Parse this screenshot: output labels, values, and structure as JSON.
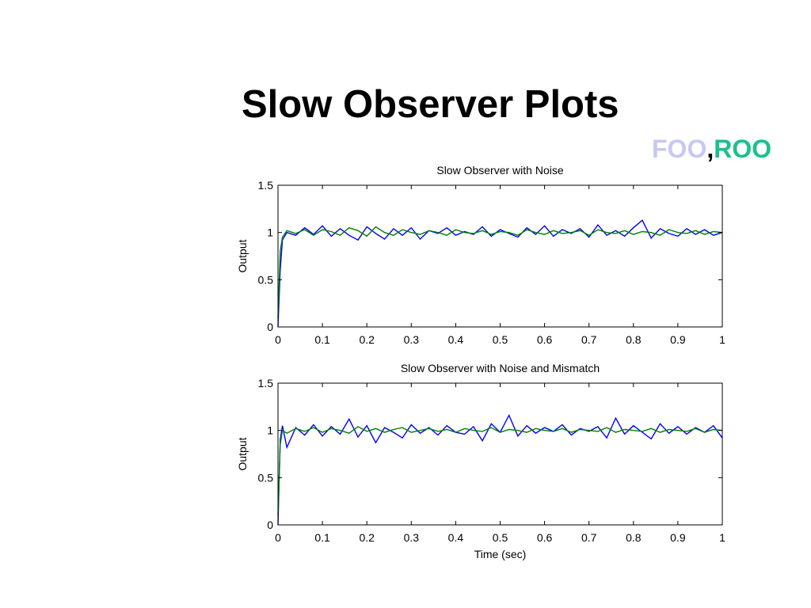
{
  "slide": {
    "title": "Slow Observer Plots",
    "tag_first": "FOO",
    "tag_sep": ",",
    "tag_second": "ROO"
  },
  "colors": {
    "series_blue": "#0000ff",
    "series_green": "#008000",
    "tag_foo": "#c8c8f4",
    "tag_roo": "#1cc08c"
  },
  "chart_data": [
    {
      "type": "line",
      "title": "Slow Observer with Noise",
      "xlabel": "",
      "ylabel": "Output",
      "xlim": [
        0,
        1
      ],
      "ylim": [
        0,
        1.5
      ],
      "xticks": [
        "0",
        "0.1",
        "0.2",
        "0.3",
        "0.4",
        "0.5",
        "0.6",
        "0.7",
        "0.8",
        "0.9",
        "1"
      ],
      "yticks": [
        "0",
        "0.5",
        "1",
        "1.5"
      ],
      "grid": false,
      "series": [
        {
          "color": "#0000ff",
          "x": [
            0,
            0.005,
            0.01,
            0.02,
            0.04,
            0.06,
            0.08,
            0.1,
            0.12,
            0.14,
            0.16,
            0.18,
            0.2,
            0.22,
            0.24,
            0.26,
            0.28,
            0.3,
            0.32,
            0.34,
            0.36,
            0.38,
            0.4,
            0.42,
            0.44,
            0.46,
            0.48,
            0.5,
            0.52,
            0.54,
            0.56,
            0.58,
            0.6,
            0.62,
            0.64,
            0.66,
            0.68,
            0.7,
            0.72,
            0.74,
            0.76,
            0.78,
            0.8,
            0.82,
            0.84,
            0.86,
            0.88,
            0.9,
            0.92,
            0.94,
            0.96,
            0.98,
            1.0
          ],
          "y": [
            0,
            0.6,
            0.92,
            1.0,
            0.97,
            1.05,
            0.98,
            1.07,
            0.96,
            1.04,
            0.97,
            0.92,
            1.06,
            0.99,
            0.93,
            1.04,
            0.97,
            1.05,
            0.93,
            1.02,
            0.99,
            1.05,
            0.97,
            1.01,
            0.98,
            1.06,
            0.96,
            1.03,
            0.99,
            0.95,
            1.05,
            0.98,
            1.07,
            0.96,
            1.03,
            0.99,
            1.04,
            0.95,
            1.08,
            0.97,
            1.02,
            0.96,
            1.05,
            1.13,
            0.94,
            1.04,
            0.99,
            0.96,
            1.04,
            0.98,
            1.03,
            0.97,
            1.0
          ]
        },
        {
          "color": "#008000",
          "x": [
            0,
            0.005,
            0.01,
            0.02,
            0.04,
            0.06,
            0.08,
            0.1,
            0.12,
            0.14,
            0.16,
            0.18,
            0.2,
            0.22,
            0.24,
            0.26,
            0.28,
            0.3,
            0.32,
            0.34,
            0.36,
            0.38,
            0.4,
            0.42,
            0.44,
            0.46,
            0.48,
            0.5,
            0.52,
            0.54,
            0.56,
            0.58,
            0.6,
            0.62,
            0.64,
            0.66,
            0.68,
            0.7,
            0.72,
            0.74,
            0.76,
            0.78,
            0.8,
            0.82,
            0.84,
            0.86,
            0.88,
            0.9,
            0.92,
            0.94,
            0.96,
            0.98,
            1.0
          ],
          "y": [
            0.1,
            0.8,
            0.95,
            1.02,
            0.99,
            1.03,
            0.97,
            1.03,
            1.01,
            0.97,
            1.05,
            1.02,
            0.96,
            1.06,
            1.0,
            0.97,
            1.03,
            1.0,
            0.98,
            1.02,
            1.0,
            0.97,
            1.03,
            1.0,
            0.99,
            1.02,
            0.98,
            1.01,
            1.0,
            0.97,
            1.03,
            1.0,
            0.98,
            1.02,
            0.99,
            1.0,
            1.02,
            0.97,
            1.03,
            1.0,
            0.99,
            1.02,
            0.98,
            1.01,
            1.0,
            0.97,
            1.03,
            1.0,
            0.99,
            1.02,
            0.98,
            1.01,
            1.0
          ]
        }
      ]
    },
    {
      "type": "line",
      "title": "Slow Observer with Noise and Mismatch",
      "xlabel": "Time (sec)",
      "ylabel": "Output",
      "xlim": [
        0,
        1
      ],
      "ylim": [
        0,
        1.5
      ],
      "xticks": [
        "0",
        "0.1",
        "0.2",
        "0.3",
        "0.4",
        "0.5",
        "0.6",
        "0.7",
        "0.8",
        "0.9",
        "1"
      ],
      "yticks": [
        "0",
        "0.5",
        "1",
        "1.5"
      ],
      "grid": false,
      "series": [
        {
          "color": "#0000ff",
          "x": [
            0,
            0.005,
            0.01,
            0.02,
            0.04,
            0.06,
            0.08,
            0.1,
            0.12,
            0.14,
            0.16,
            0.18,
            0.2,
            0.22,
            0.24,
            0.26,
            0.28,
            0.3,
            0.32,
            0.34,
            0.36,
            0.38,
            0.4,
            0.42,
            0.44,
            0.46,
            0.48,
            0.5,
            0.52,
            0.54,
            0.56,
            0.58,
            0.6,
            0.62,
            0.64,
            0.66,
            0.68,
            0.7,
            0.72,
            0.74,
            0.76,
            0.78,
            0.8,
            0.82,
            0.84,
            0.86,
            0.88,
            0.9,
            0.92,
            0.94,
            0.96,
            0.98,
            1.0
          ],
          "y": [
            0,
            0.9,
            1.05,
            0.82,
            1.03,
            0.95,
            1.06,
            0.94,
            1.04,
            0.96,
            1.12,
            0.93,
            1.05,
            0.87,
            1.03,
            0.98,
            0.92,
            1.06,
            0.97,
            1.03,
            0.95,
            1.05,
            0.98,
            0.96,
            1.04,
            0.89,
            1.07,
            0.98,
            1.16,
            0.94,
            1.05,
            0.97,
            1.03,
            0.99,
            1.06,
            0.95,
            1.02,
            0.99,
            1.04,
            0.92,
            1.13,
            0.96,
            1.05,
            0.98,
            0.91,
            1.07,
            0.97,
            1.04,
            0.96,
            1.03,
            0.98,
            1.05,
            0.92
          ]
        },
        {
          "color": "#008000",
          "x": [
            0,
            0.005,
            0.01,
            0.02,
            0.04,
            0.06,
            0.08,
            0.1,
            0.12,
            0.14,
            0.16,
            0.18,
            0.2,
            0.22,
            0.24,
            0.26,
            0.28,
            0.3,
            0.32,
            0.34,
            0.36,
            0.38,
            0.4,
            0.42,
            0.44,
            0.46,
            0.48,
            0.5,
            0.52,
            0.54,
            0.56,
            0.58,
            0.6,
            0.62,
            0.64,
            0.66,
            0.68,
            0.7,
            0.72,
            0.74,
            0.76,
            0.78,
            0.8,
            0.82,
            0.84,
            0.86,
            0.88,
            0.9,
            0.92,
            0.94,
            0.96,
            0.98,
            1.0
          ],
          "y": [
            0.1,
            0.85,
            1.0,
            0.97,
            1.02,
            0.99,
            1.03,
            0.98,
            1.02,
            1.0,
            0.97,
            1.04,
            0.99,
            1.02,
            0.98,
            1.01,
            1.03,
            0.98,
            1.0,
            1.02,
            0.99,
            1.01,
            0.98,
            1.02,
            1.0,
            0.99,
            1.03,
            0.98,
            1.01,
            1.0,
            0.98,
            1.02,
            1.0,
            0.99,
            1.02,
            0.98,
            1.01,
            1.0,
            0.99,
            1.03,
            0.98,
            1.01,
            1.0,
            0.99,
            1.02,
            0.98,
            1.01,
            1.0,
            0.99,
            1.02,
            0.98,
            1.01,
            1.0
          ]
        }
      ]
    }
  ]
}
